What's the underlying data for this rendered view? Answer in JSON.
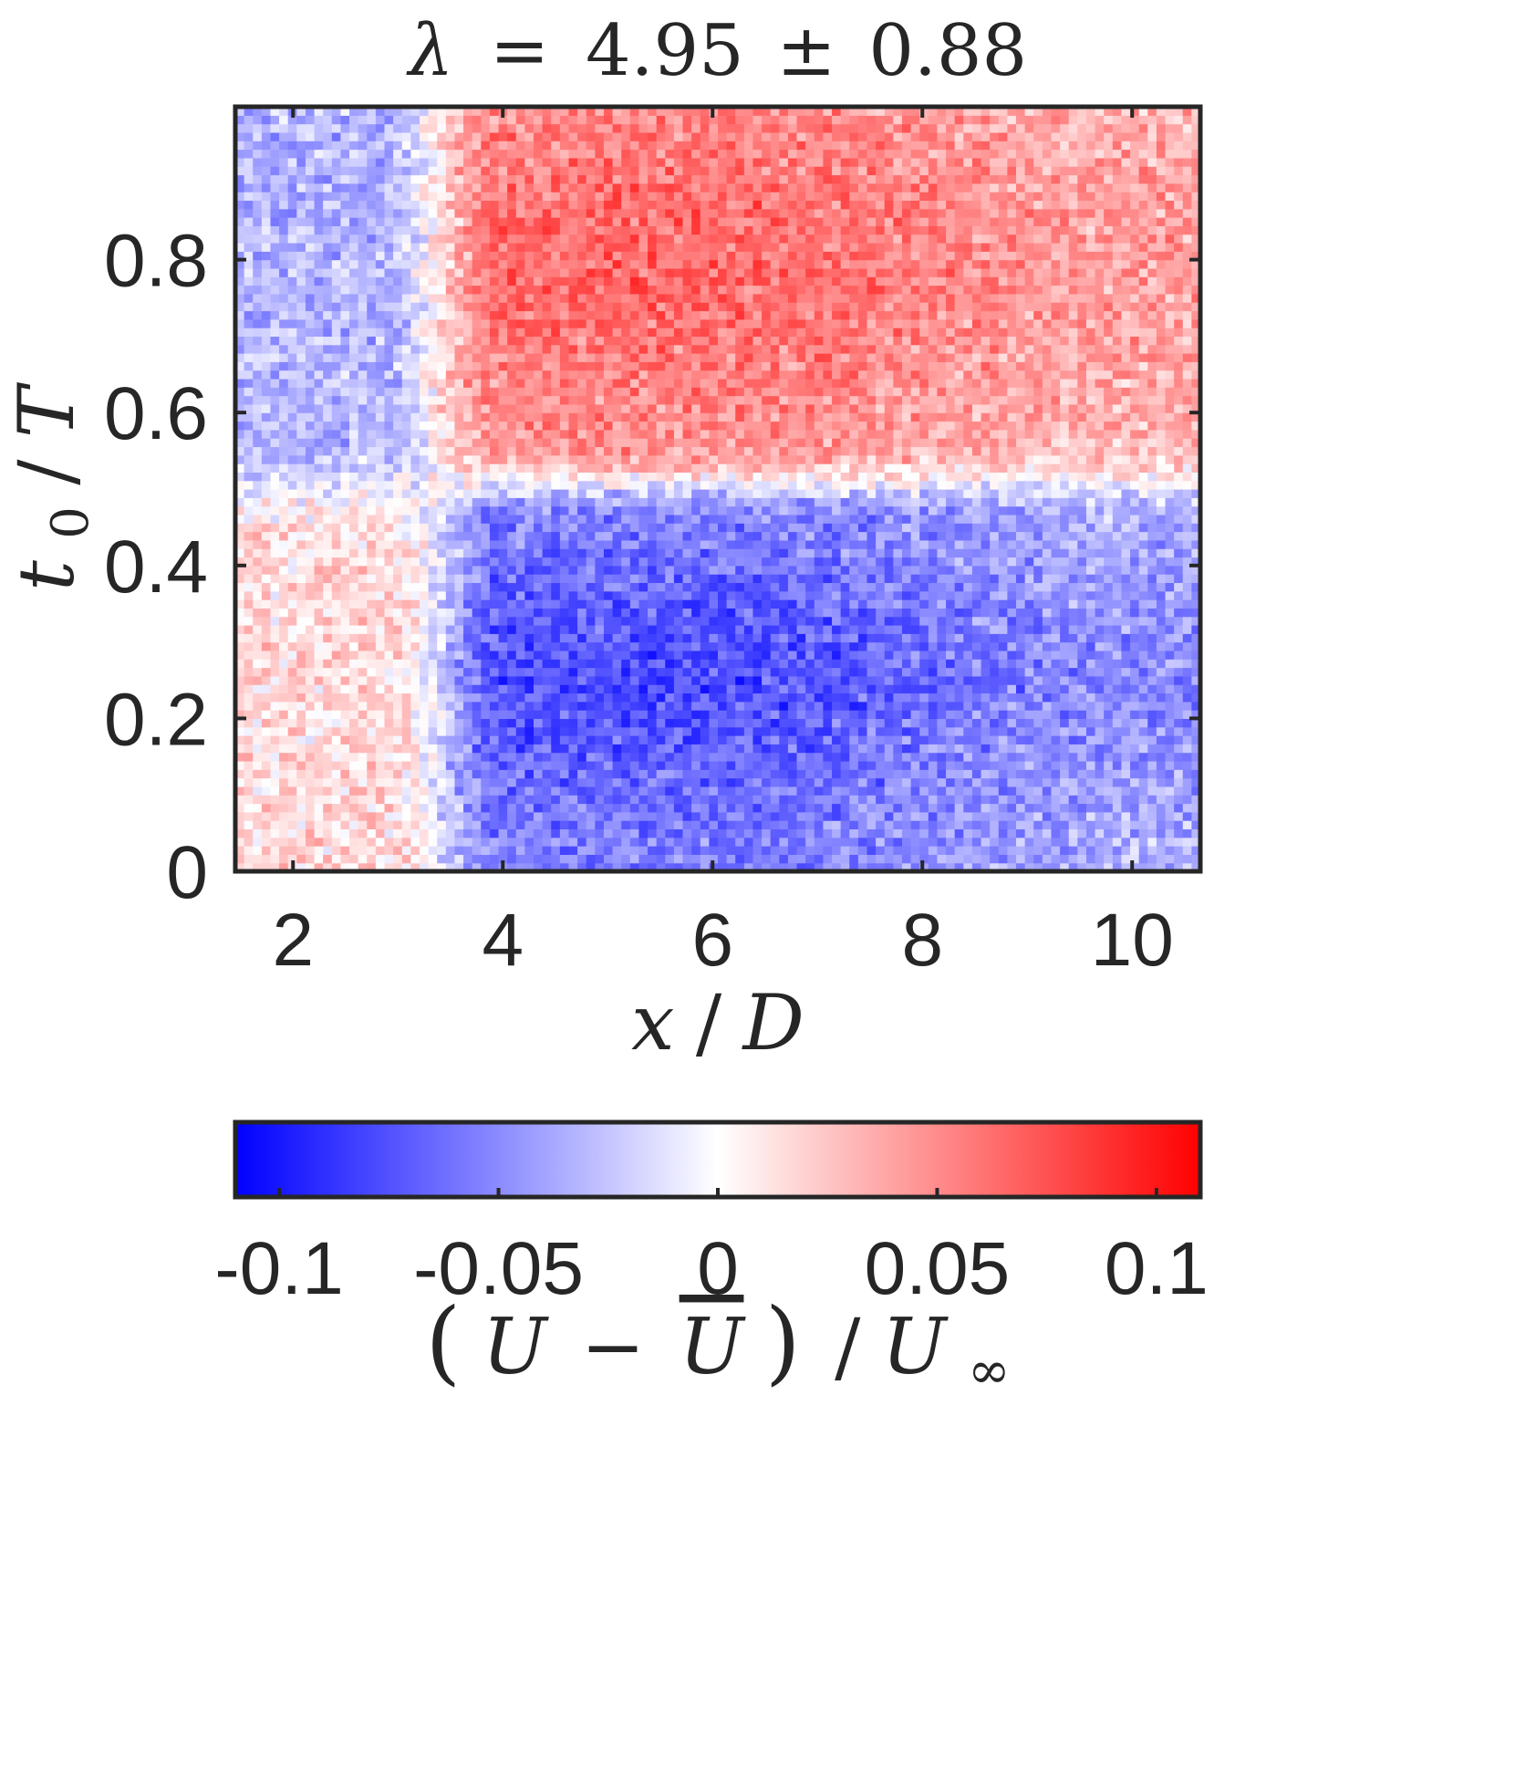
{
  "chart_data": {
    "type": "heatmap",
    "title": "λ = 4.95 ± 0.88",
    "title_parts": {
      "symbol": "λ",
      "op": "=",
      "value": "4.95",
      "pm": "±",
      "error": "0.88"
    },
    "xlabel": "x/D",
    "xlabel_parts": {
      "num": "x",
      "slash": "/",
      "den": "D"
    },
    "ylabel": "t0/T",
    "ylabel_parts": {
      "base": "t",
      "sub": "0",
      "slash": "/",
      "den": "T"
    },
    "xlim": [
      1.45,
      10.65
    ],
    "ylim": [
      0,
      1.0
    ],
    "xticks": [
      2,
      4,
      6,
      8,
      10
    ],
    "xtick_labels": [
      "2",
      "4",
      "6",
      "8",
      "10"
    ],
    "yticks": [
      0,
      0.2,
      0.4,
      0.6,
      0.8
    ],
    "ytick_labels": [
      "0",
      "0.2",
      "0.4",
      "0.6",
      "0.8"
    ],
    "field_description_regions": [
      {
        "x": [
          1.45,
          3.2
        ],
        "y": [
          0.5,
          1.0
        ],
        "value": -0.03
      },
      {
        "x": [
          1.45,
          3.2
        ],
        "y": [
          0.0,
          0.45
        ],
        "value": 0.015
      },
      {
        "x": [
          3.3,
          10.65
        ],
        "y": [
          0.5,
          1.0
        ],
        "value": 0.06
      },
      {
        "x": [
          3.5,
          10.65
        ],
        "y": [
          0.0,
          0.48
        ],
        "value": -0.07
      }
    ],
    "colorbar": {
      "label": "(U − Ū)/U∞",
      "label_parts": {
        "lp": "(",
        "a": "U",
        "minus": "−",
        "b": "U",
        "rp": ")",
        "slash": "/",
        "c": "U",
        "sub": "∞"
      },
      "range": [
        -0.11,
        0.11
      ],
      "ticks": [
        -0.1,
        -0.05,
        0,
        0.05,
        0.1
      ],
      "tick_labels": [
        "-0.1",
        "-0.05",
        "0",
        "0.05",
        "0.1"
      ],
      "colormap": [
        "#0000ff",
        "#ffffff",
        "#ff0000"
      ]
    }
  }
}
